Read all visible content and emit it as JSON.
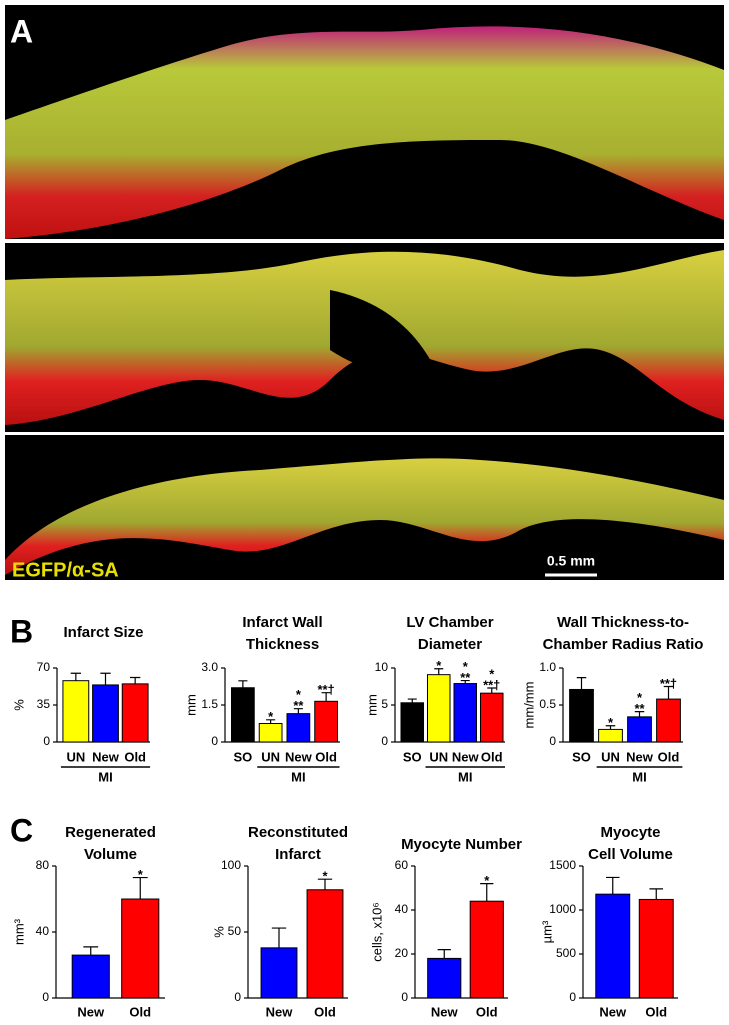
{
  "panel_a": {
    "label": "A",
    "stain_label": "EGFP/α-SA",
    "scale_bar": "0.5 mm"
  },
  "panel_b_label": "B",
  "panel_c_label": "C",
  "chart_data": [
    {
      "type": "bar",
      "title": [
        "Infarct Size"
      ],
      "ylabel": "%",
      "categories": [
        "UN",
        "New",
        "Old"
      ],
      "group": "MI",
      "values": [
        58,
        54,
        55
      ],
      "errors": [
        7,
        11,
        6
      ],
      "colors": [
        "#ffff00",
        "#0000ff",
        "#ff0000"
      ],
      "significance": [
        null,
        null,
        null
      ],
      "ylim": [
        0,
        70
      ],
      "yticks": [
        0,
        35,
        70
      ]
    },
    {
      "type": "bar",
      "title": [
        "Infarct Wall",
        "Thickness"
      ],
      "ylabel": "mm",
      "categories": [
        "SO",
        "UN",
        "New",
        "Old"
      ],
      "group": "MI",
      "values": [
        2.2,
        0.75,
        1.15,
        1.65
      ],
      "errors": [
        0.28,
        0.15,
        0.2,
        0.35
      ],
      "colors": [
        "#000000",
        "#ffff00",
        "#0000ff",
        "#ff0000"
      ],
      "significance": [
        null,
        [
          "*"
        ],
        [
          "*",
          "**"
        ],
        [
          "**†"
        ]
      ],
      "ylim": [
        0,
        3
      ],
      "yticks": [
        0,
        1.5,
        {
          "value": 3,
          "label": "3.0"
        }
      ]
    },
    {
      "type": "bar",
      "title": [
        "LV Chamber",
        "Diameter"
      ],
      "ylabel": "mm",
      "categories": [
        "SO",
        "UN",
        "New",
        "Old"
      ],
      "group": "MI",
      "values": [
        5.3,
        9.1,
        7.9,
        6.6
      ],
      "errors": [
        0.5,
        0.8,
        0.4,
        0.7
      ],
      "colors": [
        "#000000",
        "#ffff00",
        "#0000ff",
        "#ff0000"
      ],
      "significance": [
        null,
        [
          "*"
        ],
        [
          "*",
          "**"
        ],
        [
          "*",
          "**†"
        ]
      ],
      "ylim": [
        0,
        10
      ],
      "yticks": [
        0,
        5,
        10
      ]
    },
    {
      "type": "bar",
      "title": [
        "Wall Thickness-to-",
        "Chamber Radius Ratio"
      ],
      "ylabel": "mm/mm",
      "categories": [
        "SO",
        "UN",
        "New",
        "Old"
      ],
      "group": "MI",
      "values": [
        0.71,
        0.17,
        0.34,
        0.58
      ],
      "errors": [
        0.16,
        0.05,
        0.07,
        0.17
      ],
      "colors": [
        "#000000",
        "#ffff00",
        "#0000ff",
        "#ff0000"
      ],
      "significance": [
        null,
        [
          "*"
        ],
        [
          "*",
          "**"
        ],
        [
          "**†"
        ]
      ],
      "ylim": [
        0,
        1
      ],
      "yticks": [
        0,
        0.5,
        {
          "value": 1,
          "label": "1.0"
        }
      ]
    },
    {
      "type": "bar",
      "title": [
        "Regenerated",
        "Volume"
      ],
      "ylabel": "mm³",
      "categories": [
        "New",
        "Old"
      ],
      "values": [
        26,
        60
      ],
      "errors": [
        5,
        13
      ],
      "colors": [
        "#0000ff",
        "#ff0000"
      ],
      "significance": [
        null,
        [
          "*"
        ]
      ],
      "ylim": [
        0,
        80
      ],
      "yticks": [
        0,
        40,
        80
      ]
    },
    {
      "type": "bar",
      "title": [
        "Reconstituted",
        "Infarct"
      ],
      "ylabel": "%",
      "categories": [
        "New",
        "Old"
      ],
      "values": [
        38,
        82
      ],
      "errors": [
        15,
        8
      ],
      "colors": [
        "#0000ff",
        "#ff0000"
      ],
      "significance": [
        null,
        [
          "*"
        ]
      ],
      "ylim": [
        0,
        100
      ],
      "yticks": [
        0,
        50,
        100
      ]
    },
    {
      "type": "bar",
      "title": [
        "Myocyte Number"
      ],
      "ylabel": "cells, x10⁶",
      "categories": [
        "New",
        "Old"
      ],
      "values": [
        18,
        44
      ],
      "errors": [
        4,
        8
      ],
      "colors": [
        "#0000ff",
        "#ff0000"
      ],
      "significance": [
        null,
        [
          "*"
        ]
      ],
      "ylim": [
        0,
        60
      ],
      "yticks": [
        0,
        20,
        40,
        60
      ]
    },
    {
      "type": "bar",
      "title": [
        "Myocyte",
        "Cell Volume"
      ],
      "ylabel": "µm³",
      "categories": [
        "New",
        "Old"
      ],
      "values": [
        1180,
        1120
      ],
      "errors": [
        190,
        120
      ],
      "colors": [
        "#0000ff",
        "#ff0000"
      ],
      "significance": [
        null,
        null
      ],
      "ylim": [
        0,
        1500
      ],
      "yticks": [
        0,
        500,
        1000,
        1500
      ]
    }
  ]
}
